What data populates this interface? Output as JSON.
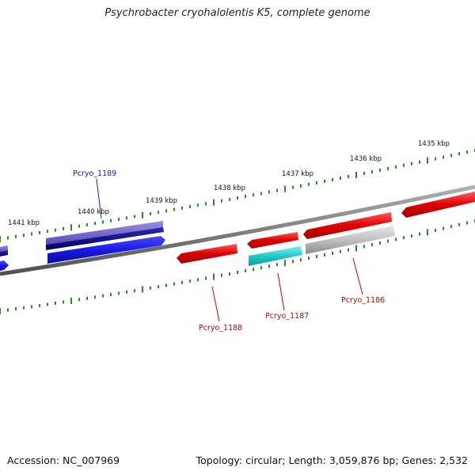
{
  "title": "Psychrobacter cryohalolentis K5, complete genome",
  "footer": {
    "accession": "Accession: NC_007969",
    "summary": "Topology: circular; Length: 3,059,876 bp; Genes: 2,532"
  },
  "scale_labels": [
    "1441 kbp",
    "1440 kbp",
    "1439 kbp",
    "1438 kbp",
    "1437 kbp",
    "1436 kbp",
    "1435 kbp"
  ],
  "gene_labels": {
    "pcryo_1189": "Pcryo_1189",
    "pcryo_1188": "Pcryo_1188",
    "pcryo_1187": "Pcryo_1187",
    "pcryo_1186": "Pcryo_1186"
  },
  "colors": {
    "backbone": "#7f7f7f",
    "tick": "#2a8a2a",
    "forward_gene": "#e00000",
    "reverse_gene": "#1a1ae6",
    "reverse_gene_dark": "#000080",
    "reverse_gene_light": "#6f62cc",
    "highlight_cyan": "#22c8c8",
    "pseudo_gray": "#b8b8b8",
    "label_blue": "#1a1ab0",
    "label_red": "#cc0000"
  }
}
